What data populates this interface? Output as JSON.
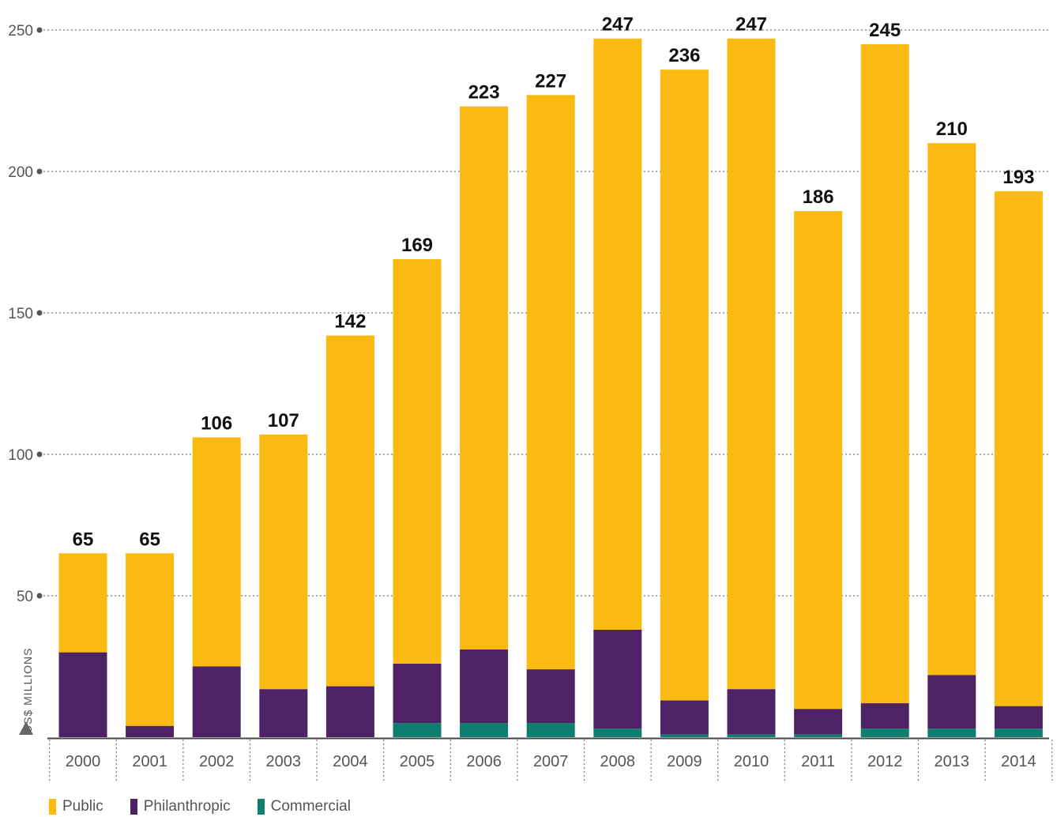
{
  "chart_data": {
    "type": "bar",
    "stacked": true,
    "categories": [
      "2000",
      "2001",
      "2002",
      "2003",
      "2004",
      "2005",
      "2006",
      "2007",
      "2008",
      "2009",
      "2010",
      "2011",
      "2012",
      "2013",
      "2014"
    ],
    "series": [
      {
        "name": "Public",
        "color": "#FBBA12",
        "values": [
          35,
          61,
          81,
          90,
          124,
          143,
          192,
          203,
          209,
          223,
          230,
          176,
          233,
          188,
          182
        ]
      },
      {
        "name": "Philanthropic",
        "color": "#4E2366",
        "values": [
          30,
          4,
          25,
          17,
          18,
          21,
          26,
          19,
          35,
          12,
          16,
          9,
          9,
          19,
          8
        ]
      },
      {
        "name": "Commercial",
        "color": "#0E7F6E",
        "values": [
          0,
          0,
          0,
          0,
          0,
          5,
          5,
          5,
          3,
          1,
          1,
          1,
          3,
          3,
          3
        ]
      }
    ],
    "totals": [
      65,
      65,
      106,
      107,
      142,
      169,
      223,
      227,
      247,
      236,
      247,
      186,
      245,
      210,
      193
    ],
    "ylabel": "US$ MILLIONS",
    "xlabel": "",
    "yticks": [
      50,
      100,
      150,
      200,
      250
    ],
    "ylim": [
      0,
      250
    ],
    "grid": "dotted horizontal",
    "legend_position": "bottom-left"
  }
}
